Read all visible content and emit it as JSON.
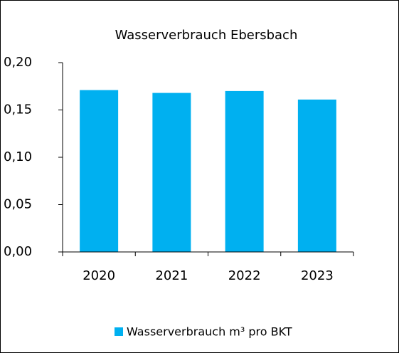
{
  "chart_data": {
    "type": "bar",
    "title": "Wasserverbrauch Ebersbach",
    "categories": [
      "2020",
      "2021",
      "2022",
      "2023"
    ],
    "series": [
      {
        "name": "Wasserverbrauch m³ pro BKT",
        "color": "#00b0f0",
        "values": [
          0.171,
          0.168,
          0.17,
          0.161
        ]
      }
    ],
    "ylim": [
      0,
      0.2
    ],
    "yticks": [
      {
        "value": 0,
        "label": "0,00"
      },
      {
        "value": 0.05,
        "label": "0,05"
      },
      {
        "value": 0.1,
        "label": "0,10"
      },
      {
        "value": 0.15,
        "label": "0,15"
      },
      {
        "value": 0.2,
        "label": "0,20"
      }
    ],
    "legend": "bottom"
  }
}
